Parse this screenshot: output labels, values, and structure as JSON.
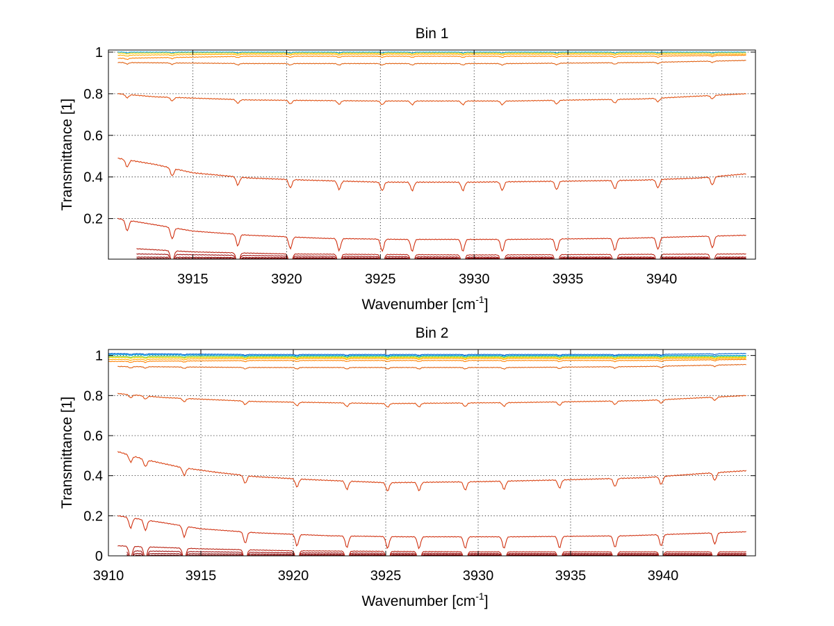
{
  "chart_data": [
    {
      "type": "line",
      "title": "Bin 1",
      "xlabel": "Wavenumber [cm",
      "xlabel_sup": "-1",
      "xlabel_end": "]",
      "ylabel": "Transmittance [1]",
      "xlim": [
        3910.5,
        3945
      ],
      "ylim": [
        0.005,
        1.01
      ],
      "x_ticks": [
        3915,
        3920,
        3925,
        3930,
        3935,
        3940
      ],
      "y_ticks": [
        0.2,
        0.4,
        0.6,
        0.8,
        1
      ],
      "x_tick_labels": [
        "3915",
        "3920",
        "3925",
        "3930",
        "3935",
        "3940"
      ],
      "y_tick_labels": [
        "0.2",
        "0.4",
        "0.6",
        "0.8",
        "1"
      ],
      "grid": true,
      "dips": [
        3911.5,
        3913.9,
        3917.4,
        3920.2,
        3922.8,
        3925.1,
        3926.7,
        3929.4,
        3931.5,
        3934.4,
        3937.5,
        3939.8,
        3942.7
      ],
      "series": [
        {
          "color": "#00a6e8",
          "x": [
            3911,
            3918,
            3925,
            3932,
            3939,
            3944.5
          ],
          "y": [
            1.0,
            1.0,
            1.0,
            1.0,
            1.0,
            1.0
          ]
        },
        {
          "color": "#ffd700",
          "x": [
            3911,
            3918,
            3925,
            3932,
            3939,
            3944.5
          ],
          "y": [
            0.995,
            0.996,
            0.996,
            0.996,
            0.996,
            0.997
          ]
        },
        {
          "color": "#ffaa00",
          "x": [
            3911,
            3918,
            3925,
            3932,
            3939,
            3944.5
          ],
          "y": [
            0.985,
            0.99,
            0.99,
            0.99,
            0.99,
            0.99
          ]
        },
        {
          "color": "#ff8000",
          "x": [
            3911,
            3918,
            3925,
            3932,
            3939,
            3944.5
          ],
          "y": [
            0.97,
            0.98,
            0.98,
            0.98,
            0.98,
            0.985
          ]
        },
        {
          "color": "#e06010",
          "x": [
            3911,
            3918,
            3925,
            3932,
            3939,
            3944.5
          ],
          "y": [
            0.95,
            0.945,
            0.945,
            0.945,
            0.95,
            0.96
          ]
        },
        {
          "color": "#e05010",
          "x": [
            3911,
            3913,
            3918,
            3925,
            3932,
            3939,
            3944.5
          ],
          "y": [
            0.8,
            0.785,
            0.77,
            0.765,
            0.765,
            0.775,
            0.8
          ]
        },
        {
          "color": "#d94010",
          "x": [
            3911,
            3913,
            3915,
            3918,
            3921,
            3925,
            3930,
            3935,
            3939,
            3942,
            3944.5
          ],
          "y": [
            0.49,
            0.46,
            0.42,
            0.395,
            0.385,
            0.375,
            0.375,
            0.38,
            0.385,
            0.395,
            0.415
          ]
        },
        {
          "color": "#d03010",
          "x": [
            3911,
            3913,
            3915,
            3918,
            3922,
            3926,
            3932,
            3938,
            3944.5
          ],
          "y": [
            0.2,
            0.17,
            0.14,
            0.12,
            0.105,
            0.1,
            0.1,
            0.105,
            0.12
          ]
        },
        {
          "color": "#b82010",
          "x": [
            3912,
            3915,
            3920,
            3930,
            3944.5
          ],
          "y": [
            0.055,
            0.04,
            0.03,
            0.025,
            0.03
          ]
        },
        {
          "color": "#a01010",
          "x": [
            3912,
            3920,
            3930,
            3944.5
          ],
          "y": [
            0.03,
            0.02,
            0.015,
            0.015
          ]
        },
        {
          "color": "#8c0808",
          "x": [
            3912,
            3920,
            3930,
            3944.5
          ],
          "y": [
            0.015,
            0.012,
            0.01,
            0.01
          ]
        },
        {
          "color": "#800000",
          "x": [
            3912,
            3944.5
          ],
          "y": [
            0.008,
            0.008
          ]
        }
      ]
    },
    {
      "type": "line",
      "title": "Bin 2",
      "xlabel": "Wavenumber [cm",
      "xlabel_sup": "-1",
      "xlabel_end": "]",
      "ylabel": "Transmittance [1]",
      "xlim": [
        3910,
        3945
      ],
      "ylim": [
        0,
        1.03
      ],
      "x_ticks": [
        3910,
        3915,
        3920,
        3925,
        3930,
        3935,
        3940
      ],
      "y_ticks": [
        0,
        0.2,
        0.4,
        0.6,
        0.8,
        1
      ],
      "x_tick_labels": [
        "3910",
        "3915",
        "3920",
        "3925",
        "3930",
        "3935",
        "3940"
      ],
      "y_tick_labels": [
        "0",
        "0.2",
        "0.4",
        "0.6",
        "0.8",
        "1"
      ],
      "grid": true,
      "dips": [
        3911.2,
        3912.0,
        3914.1,
        3917.4,
        3920.2,
        3922.9,
        3925.1,
        3926.8,
        3929.3,
        3931.4,
        3934.4,
        3937.4,
        3939.9,
        3942.8
      ],
      "series": [
        {
          "color": "#0060d0",
          "x": [
            3910,
            3918,
            3925,
            3932,
            3939,
            3944.5
          ],
          "y": [
            1.01,
            1.005,
            1.005,
            1.005,
            1.005,
            1.01
          ]
        },
        {
          "color": "#00a6e8",
          "x": [
            3910,
            3918,
            3925,
            3932,
            3939,
            3944.5
          ],
          "y": [
            1.005,
            1.0,
            1.0,
            1.0,
            1.0,
            1.0
          ]
        },
        {
          "color": "#66cc33",
          "x": [
            3910,
            3918,
            3925,
            3932,
            3939,
            3944.5
          ],
          "y": [
            0.995,
            0.995,
            0.995,
            0.995,
            0.995,
            0.995
          ]
        },
        {
          "color": "#ffd700",
          "x": [
            3910,
            3918,
            3925,
            3932,
            3939,
            3944.5
          ],
          "y": [
            0.99,
            0.99,
            0.99,
            0.99,
            0.99,
            0.99
          ]
        },
        {
          "color": "#ffaa00",
          "x": [
            3910,
            3918,
            3925,
            3932,
            3939,
            3944.5
          ],
          "y": [
            0.98,
            0.985,
            0.985,
            0.985,
            0.985,
            0.985
          ]
        },
        {
          "color": "#ff8000",
          "x": [
            3910,
            3918,
            3925,
            3932,
            3939,
            3944.5
          ],
          "y": [
            0.97,
            0.975,
            0.975,
            0.975,
            0.975,
            0.98
          ]
        },
        {
          "color": "#e06010",
          "x": [
            3910.5,
            3918,
            3925,
            3932,
            3939,
            3944.5
          ],
          "y": [
            0.945,
            0.94,
            0.94,
            0.94,
            0.945,
            0.955
          ]
        },
        {
          "color": "#e05010",
          "x": [
            3910.5,
            3913,
            3918,
            3925,
            3932,
            3939,
            3944.5
          ],
          "y": [
            0.81,
            0.79,
            0.77,
            0.76,
            0.765,
            0.775,
            0.8
          ]
        },
        {
          "color": "#d94010",
          "x": [
            3910.5,
            3912,
            3914,
            3916,
            3918,
            3921,
            3925,
            3930,
            3935,
            3939,
            3942,
            3944.5
          ],
          "y": [
            0.52,
            0.48,
            0.44,
            0.415,
            0.395,
            0.38,
            0.365,
            0.37,
            0.38,
            0.39,
            0.41,
            0.425
          ]
        },
        {
          "color": "#d03010",
          "x": [
            3910.5,
            3913,
            3915,
            3918,
            3922,
            3926,
            3932,
            3938,
            3944.5
          ],
          "y": [
            0.2,
            0.165,
            0.135,
            0.115,
            0.1,
            0.095,
            0.095,
            0.1,
            0.12
          ]
        },
        {
          "color": "#b82010",
          "x": [
            3910.5,
            3915,
            3920,
            3930,
            3944.5
          ],
          "y": [
            0.05,
            0.035,
            0.025,
            0.02,
            0.02
          ]
        },
        {
          "color": "#a01010",
          "x": [
            3911,
            3920,
            3930,
            3944.5
          ],
          "y": [
            0.025,
            0.015,
            0.012,
            0.012
          ]
        },
        {
          "color": "#8c0808",
          "x": [
            3911,
            3920,
            3930,
            3944.5
          ],
          "y": [
            0.012,
            0.008,
            0.006,
            0.006
          ]
        },
        {
          "color": "#800000",
          "x": [
            3911,
            3944.5
          ],
          "y": [
            0.003,
            0.003
          ]
        }
      ]
    }
  ]
}
